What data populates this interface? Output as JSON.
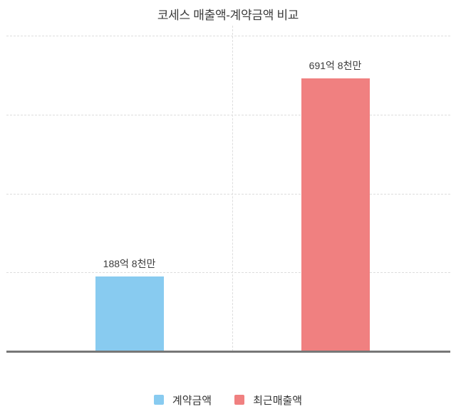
{
  "chart_data": {
    "type": "bar",
    "title": "코세스 매출액-계약금액 비교",
    "categories": [
      "계약금액",
      "최근매출액"
    ],
    "series": [
      {
        "name": "계약금액",
        "value": 188.8,
        "value_label": "188억 8천만",
        "color": "#88CBF0"
      },
      {
        "name": "최근매출액",
        "value": 691.8,
        "value_label": "691억 8천만",
        "color": "#F08080"
      }
    ],
    "xlabel": "",
    "ylabel": "",
    "ylim": [
      0,
      800
    ],
    "y_gridline_values": [
      200,
      400,
      600,
      800
    ],
    "grid": "dashed horizontal lines plus one dashed vertical divider between categories; no axis tick labels",
    "legend_position": "bottom-center",
    "legend": [
      {
        "label": "계약금액",
        "color": "#88CBF0"
      },
      {
        "label": "최근매출액",
        "color": "#F08080"
      }
    ]
  },
  "colors": {
    "background": "#ffffff",
    "gridline": "#dddddd",
    "axis_line": "#777777",
    "title_text": "#3c3c3c",
    "label_text": "#3c3c3c",
    "legend_text": "#333333"
  }
}
